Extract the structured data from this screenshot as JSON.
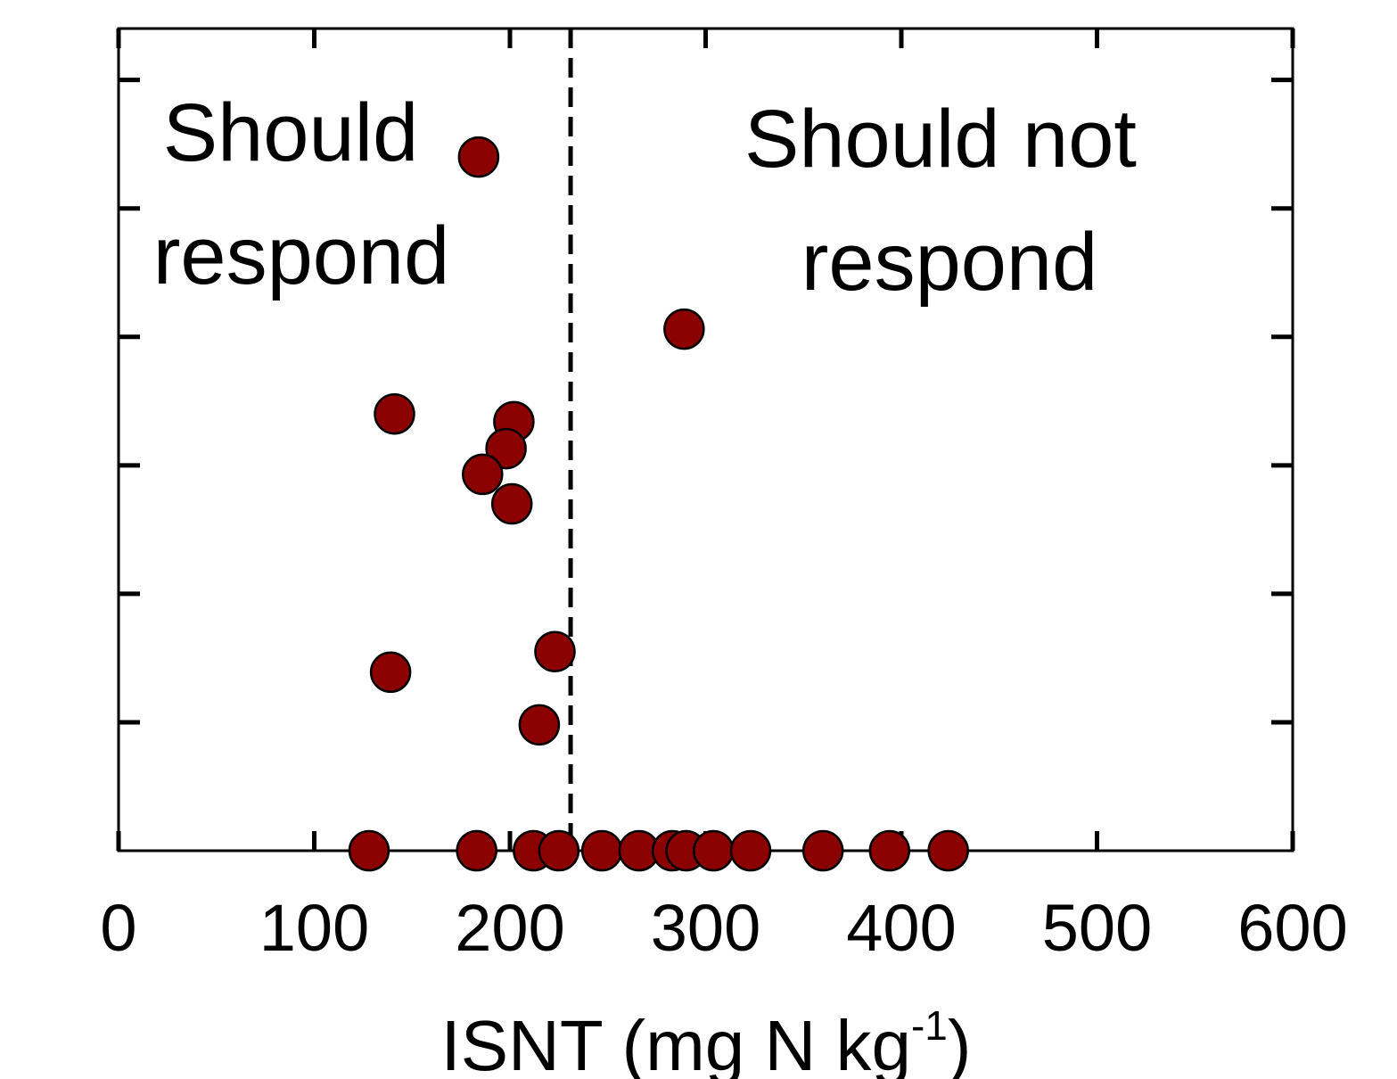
{
  "chart_data": {
    "type": "scatter",
    "xlabel": "ISNT (mg N kg",
    "xlabel_superscript": "-1",
    "xlabel_suffix": ")",
    "ylabel": "",
    "xlim": [
      0,
      600
    ],
    "ylim": [
      0,
      6.4
    ],
    "x_ticks": [
      0,
      100,
      200,
      300,
      400,
      500,
      600
    ],
    "x_tick_labels": [
      "0",
      "100",
      "200",
      "300",
      "400",
      "500",
      "600"
    ],
    "y_ticks": [
      1,
      2,
      3,
      4,
      5,
      6
    ],
    "grid": false,
    "legend": "none",
    "marker_color": "#8b0000",
    "threshold": {
      "x": 231,
      "style": "dashed"
    },
    "annotations": {
      "left_line1": "Should",
      "left_line2": "respond",
      "right_line1": "Should not",
      "right_line2": "respond"
    },
    "points": [
      {
        "x": 184,
        "y": 5.4
      },
      {
        "x": 289,
        "y": 4.06
      },
      {
        "x": 141,
        "y": 3.4
      },
      {
        "x": 202,
        "y": 3.34
      },
      {
        "x": 198,
        "y": 3.13
      },
      {
        "x": 186,
        "y": 2.93
      },
      {
        "x": 201,
        "y": 2.7
      },
      {
        "x": 223,
        "y": 1.55
      },
      {
        "x": 139,
        "y": 1.39
      },
      {
        "x": 215,
        "y": 0.98
      },
      {
        "x": 128,
        "y": 0
      },
      {
        "x": 183,
        "y": 0
      },
      {
        "x": 212,
        "y": 0
      },
      {
        "x": 225,
        "y": 0
      },
      {
        "x": 247,
        "y": 0
      },
      {
        "x": 266,
        "y": 0
      },
      {
        "x": 283,
        "y": 0
      },
      {
        "x": 290,
        "y": 0
      },
      {
        "x": 304,
        "y": 0
      },
      {
        "x": 323,
        "y": 0
      },
      {
        "x": 360,
        "y": 0
      },
      {
        "x": 394,
        "y": 0
      },
      {
        "x": 424,
        "y": 0
      }
    ]
  }
}
